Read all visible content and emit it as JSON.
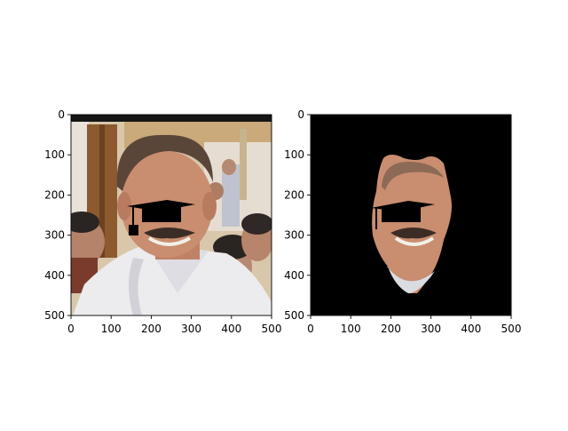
{
  "chart_data": [
    {
      "type": "image",
      "content": "photo-face-with-graduation-cap",
      "xlim": [
        0,
        500
      ],
      "ylim": [
        500,
        0
      ],
      "xticks": [
        "0",
        "100",
        "200",
        "300",
        "400",
        "500"
      ],
      "yticks": [
        "0",
        "100",
        "200",
        "300",
        "400",
        "500"
      ],
      "grid": false,
      "title": "",
      "xlabel": "",
      "ylabel": ""
    },
    {
      "type": "image",
      "content": "masked-face-on-black-background",
      "xlim": [
        0,
        500
      ],
      "ylim": [
        500,
        0
      ],
      "xticks": [
        "0",
        "100",
        "200",
        "300",
        "400",
        "500"
      ],
      "yticks": [
        "0",
        "100",
        "200",
        "300",
        "400",
        "500"
      ],
      "grid": false,
      "title": "",
      "xlabel": "",
      "ylabel": ""
    }
  ],
  "colors": {
    "skin": "#c98d6f",
    "shirt": "#ecebee",
    "hair": "#5a4638",
    "background_mask": "#000000",
    "wall": "#d9c3a0",
    "door": "#8c5a2e"
  }
}
